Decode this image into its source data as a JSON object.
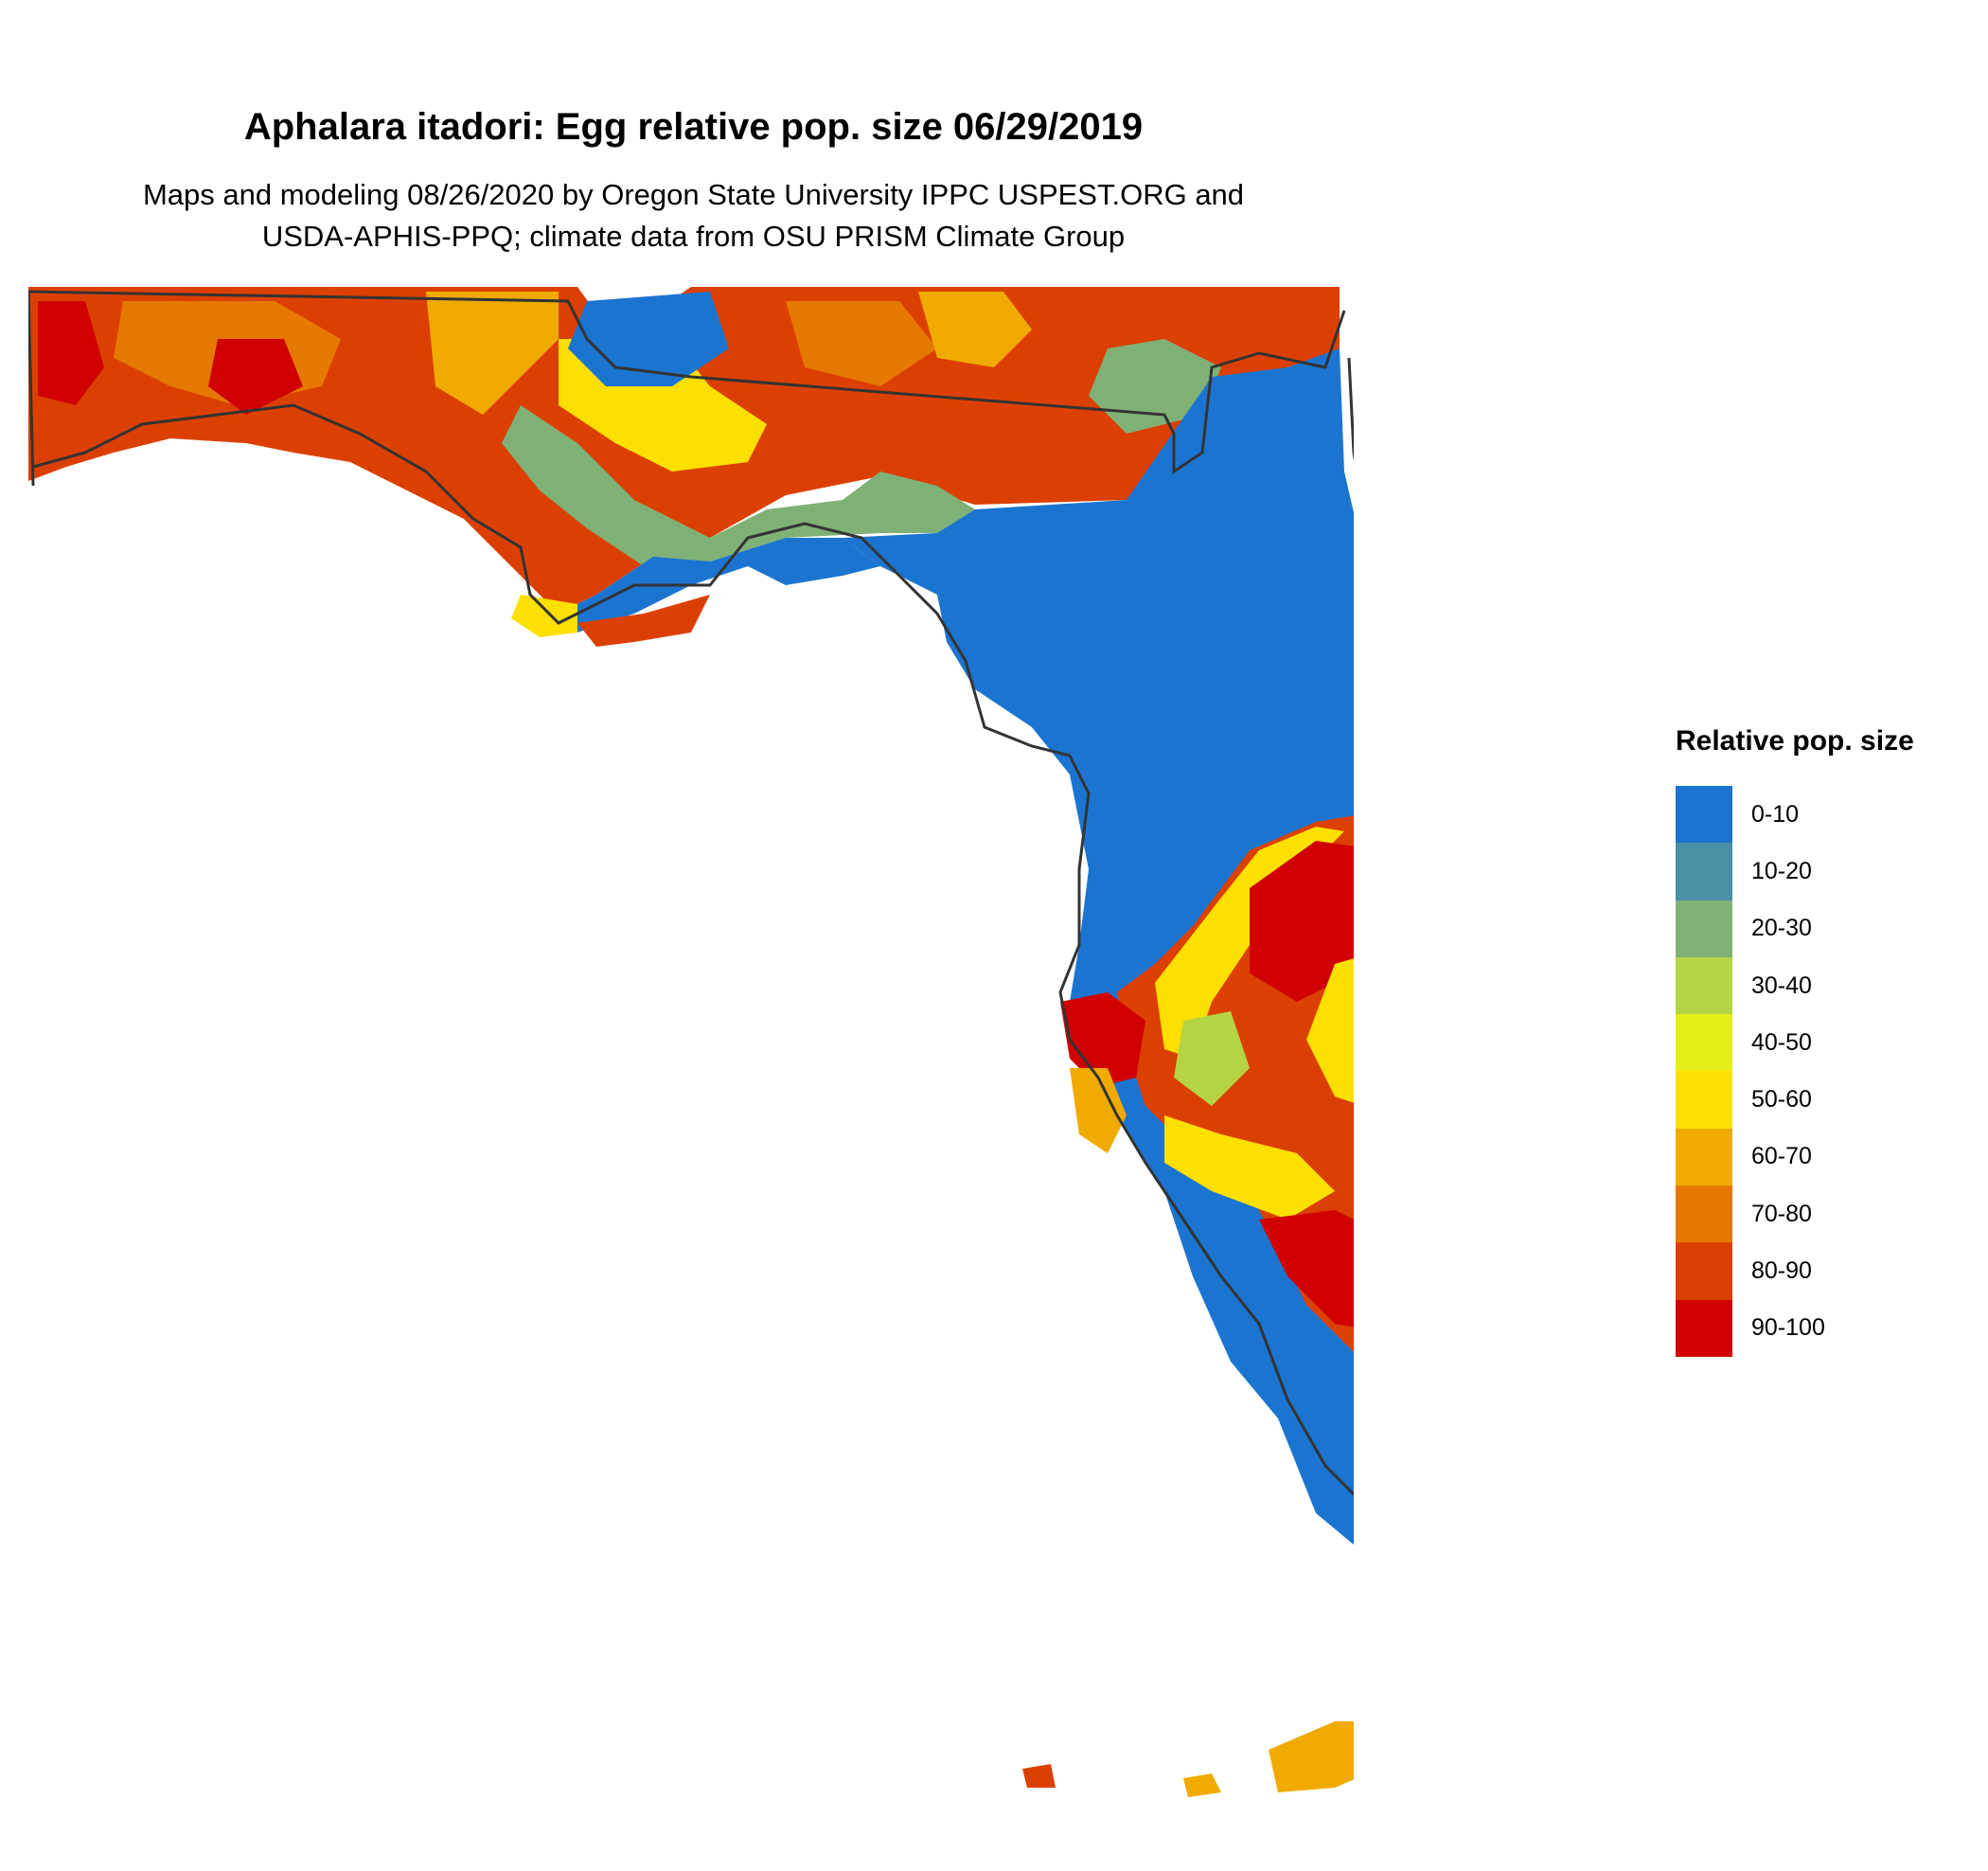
{
  "title": "Aphalara itadori: Egg relative pop. size 06/29/2019",
  "subtitle_line1": "Maps and modeling 08/26/2020 by Oregon State University IPPC USPEST.ORG and",
  "subtitle_line2": "USDA-APHIS-PPQ; climate data from OSU PRISM Climate Group",
  "legend": {
    "title": "Relative pop. size",
    "items": [
      {
        "label": "0-10",
        "color": "#1b75d0"
      },
      {
        "label": "10-20",
        "color": "#4a90a4"
      },
      {
        "label": "20-30",
        "color": "#7fb177"
      },
      {
        "label": "30-40",
        "color": "#b5d444"
      },
      {
        "label": "40-50",
        "color": "#e6ee18"
      },
      {
        "label": "50-60",
        "color": "#fde000"
      },
      {
        "label": "60-70",
        "color": "#f0aa00"
      },
      {
        "label": "70-80",
        "color": "#e67800"
      },
      {
        "label": "80-90",
        "color": "#dc4000"
      },
      {
        "label": "90-100",
        "color": "#d00000"
      }
    ]
  },
  "map": {
    "region": "Florida",
    "outline_color": "#333333"
  }
}
